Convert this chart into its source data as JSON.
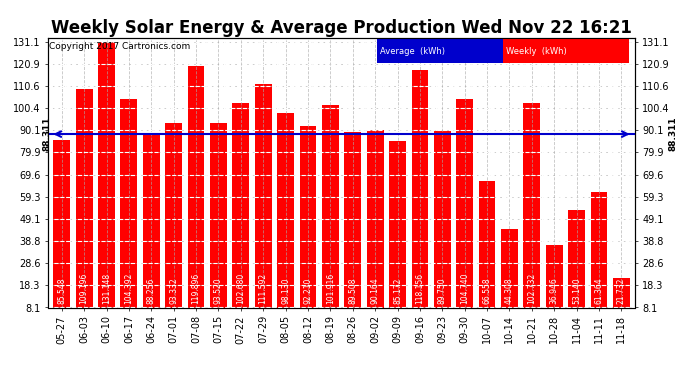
{
  "title": "Weekly Solar Energy & Average Production Wed Nov 22 16:21",
  "copyright": "Copyright 2017 Cartronics.com",
  "categories": [
    "05-27",
    "06-03",
    "06-10",
    "06-17",
    "06-24",
    "07-01",
    "07-08",
    "07-15",
    "07-22",
    "07-29",
    "08-05",
    "08-12",
    "08-19",
    "08-26",
    "09-02",
    "09-09",
    "09-16",
    "09-23",
    "09-30",
    "10-07",
    "10-14",
    "10-21",
    "10-28",
    "11-04",
    "11-11",
    "11-18"
  ],
  "values": [
    85.548,
    109.196,
    131.148,
    104.392,
    88.256,
    93.332,
    119.896,
    93.52,
    102.68,
    111.592,
    98.13,
    92.21,
    101.916,
    89.508,
    90.164,
    85.172,
    118.156,
    89.75,
    104.74,
    66.558,
    44.308,
    102.732,
    36.946,
    53.14,
    61.364,
    21.732
  ],
  "average": 88.311,
  "bar_color": "#ff0000",
  "avg_line_color": "#0000cc",
  "grid_color": "#aaaaaa",
  "background_color": "#ffffff",
  "ylim_min": 8.1,
  "ylim_max": 133.0,
  "yticks": [
    8.1,
    18.3,
    28.6,
    38.8,
    49.1,
    59.3,
    69.6,
    79.9,
    90.1,
    100.4,
    110.6,
    120.9,
    131.1
  ],
  "avg_label": "88.311",
  "legend_avg_label": "Average  (kWh)",
  "legend_weekly_label": "Weekly  (kWh)",
  "title_fontsize": 12,
  "copyright_fontsize": 6.5,
  "tick_fontsize": 7,
  "bar_label_fontsize": 5.5
}
